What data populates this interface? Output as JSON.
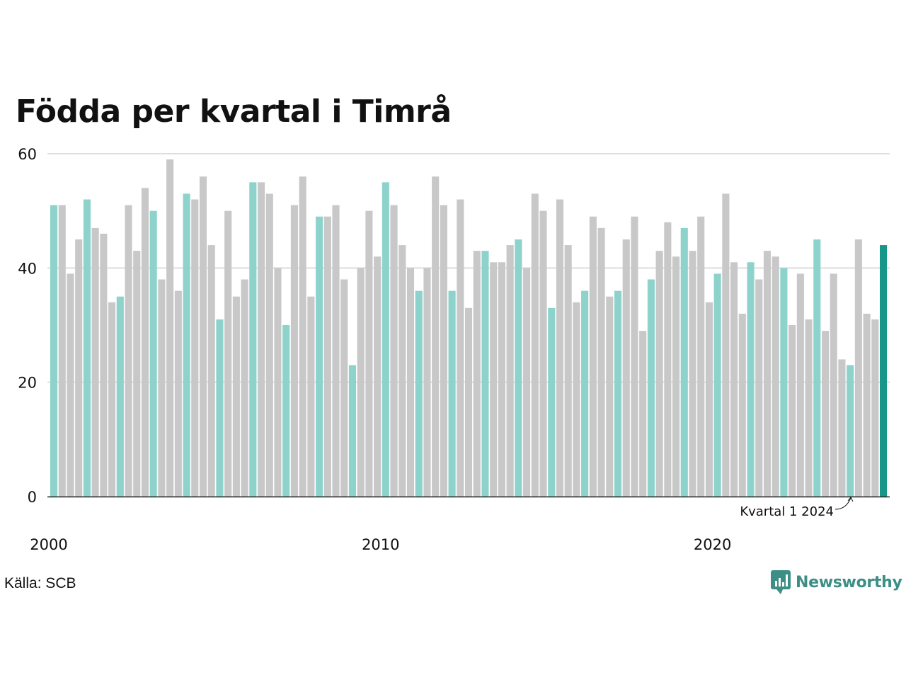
{
  "chart_data": {
    "type": "bar",
    "title": "Födda per kvartal i Timrå",
    "ylim": [
      0,
      60
    ],
    "yticks": [
      0,
      20,
      40,
      60
    ],
    "xtick_labels": [
      "2000",
      "2010",
      "2020"
    ],
    "grid": true,
    "highlight_color": "#8dd3cc",
    "base_color": "#c8c8c8",
    "latest_color": "#17968a",
    "annotation": "Kvartal 1 2024",
    "series": [
      {
        "values": [
          51,
          51,
          39,
          45,
          52,
          47,
          46,
          34,
          35,
          51,
          43,
          54,
          50,
          38,
          59,
          36,
          53,
          52,
          56,
          44,
          31,
          50,
          35,
          38,
          55,
          55,
          53,
          40,
          30,
          51,
          56,
          35,
          49,
          49,
          51,
          38,
          23,
          40,
          50,
          42,
          55,
          51,
          44,
          40,
          36,
          40,
          56,
          51,
          36,
          52,
          33,
          43,
          43,
          41,
          41,
          44,
          45,
          40,
          53,
          50,
          33,
          52,
          44,
          34,
          36,
          49,
          47,
          35,
          36,
          45,
          49,
          29,
          38,
          43,
          48,
          42,
          47,
          43,
          49,
          34,
          39,
          53,
          41,
          32,
          41,
          38,
          43,
          42,
          40,
          30,
          39,
          31,
          45,
          29,
          39,
          24,
          23,
          45,
          32,
          31,
          44
        ]
      }
    ]
  },
  "source": "Källa: SCB",
  "brand": {
    "name": "Newsworthy",
    "icon": "newsworthy-logo-icon",
    "color": "#3d8f86"
  }
}
